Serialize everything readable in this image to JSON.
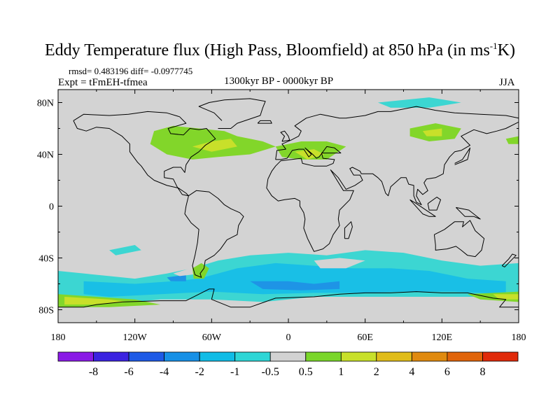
{
  "title_main": "Eddy Temperature flux (High Pass, Bloomfield) at 850 hPa (in ms",
  "title_sup": "-1",
  "title_end": "K)",
  "stats": "rmsd= 0.483196 diff= -0.0977745",
  "experiment": "Expt = tFmEH-tfmea",
  "subtitle": "1300kyr BP - 0000kyr BP",
  "season": "JJA",
  "lat_labels": [
    "80N",
    "40N",
    "0",
    "40S",
    "80S"
  ],
  "lon_labels": [
    "180",
    "120W",
    "60W",
    "0",
    "60E",
    "120E",
    "180"
  ],
  "colorbar": {
    "labels": [
      "-8",
      "-6",
      "-4",
      "-2",
      "-1",
      "-0.5",
      "0.5",
      "1",
      "2",
      "4",
      "6",
      "8"
    ],
    "colors": [
      "#8a1ae6",
      "#3b23e0",
      "#1e5ae6",
      "#1790e6",
      "#10bce6",
      "#2ed6d6",
      "#d2d2d2",
      "#7ad62a",
      "#c8e02a",
      "#e0bc1a",
      "#e08a0f",
      "#e0640a",
      "#e02a0a"
    ]
  },
  "field_colors": {
    "background": "#d3d3d3",
    "neg_weak": "#3cd6d2",
    "neg_mod": "#19bfe6",
    "neg_strong": "#1e94e6",
    "pos_weak": "#82d62a",
    "pos_mod": "#c8e02a"
  }
}
